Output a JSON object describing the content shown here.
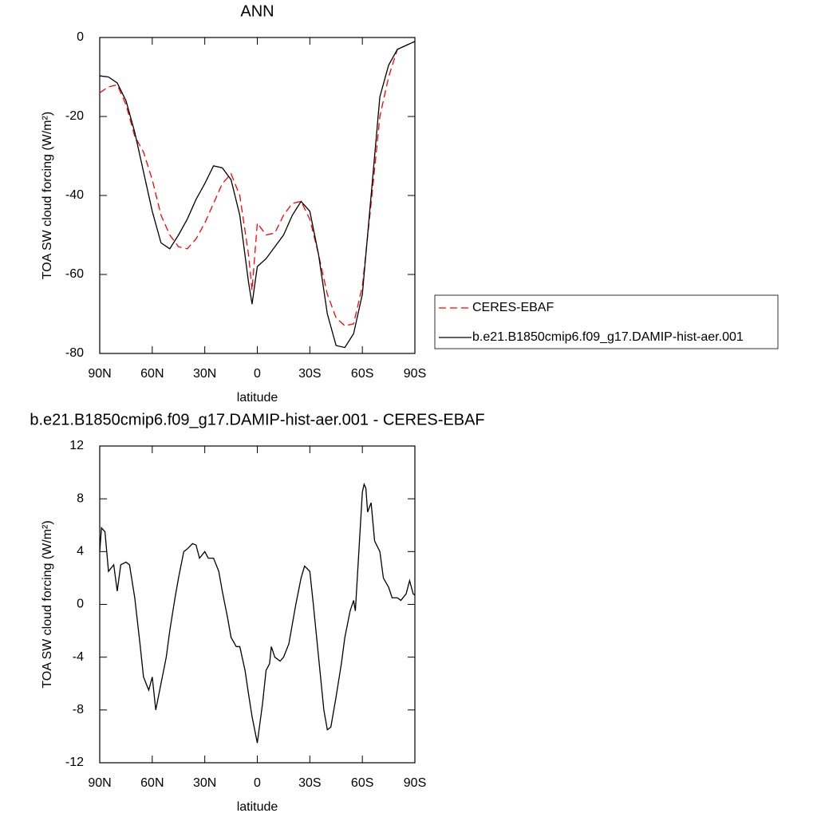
{
  "chart_data": [
    {
      "type": "line",
      "title": "ANN",
      "x_label": "latitude",
      "y_label": "TOA SW cloud forcing (W/m²)",
      "x": [
        90,
        85,
        80,
        75,
        70,
        65,
        60,
        55,
        50,
        45,
        40,
        35,
        30,
        25,
        20,
        15,
        10,
        5,
        3,
        0,
        -5,
        -10,
        -15,
        -20,
        -25,
        -30,
        -35,
        -40,
        -45,
        -50,
        -55,
        -60,
        -65,
        -70,
        -75,
        -80,
        -85,
        -90
      ],
      "series": [
        {
          "name": "CERES-EBAF",
          "color": "#ff0000",
          "line_style": "dashed",
          "values": [
            -14,
            -12.5,
            -12,
            -17,
            -25,
            -29,
            -36,
            -45,
            -50,
            -53,
            -53.5,
            -51,
            -47,
            -42,
            -37,
            -34.5,
            -40,
            -55,
            -64,
            -47,
            -50,
            -49.5,
            -45,
            -42,
            -41.5,
            -46,
            -55,
            -65,
            -71,
            -73,
            -72.5,
            -63,
            -42,
            -20,
            -10,
            -3,
            -2,
            -1
          ]
        },
        {
          "name": "b.e21.B1850cmip6.f09_g17.DAMIP-hist-aer.001",
          "color": "#000000",
          "line_style": "solid",
          "values": [
            -9.7,
            -10,
            -11.5,
            -16,
            -24,
            -34,
            -44,
            -52,
            -53.5,
            -50,
            -46,
            -41,
            -37,
            -32.5,
            -33,
            -36,
            -45,
            -62,
            -67.5,
            -58,
            -56,
            -53,
            -50,
            -45,
            -41.5,
            -44,
            -55,
            -70,
            -78,
            -78.5,
            -75,
            -65,
            -40,
            -15,
            -7,
            -3,
            -2,
            -1
          ]
        }
      ],
      "xlim": [
        90,
        -90
      ],
      "xticks": [
        {
          "value": 90,
          "label": "90N"
        },
        {
          "value": 60,
          "label": "60N"
        },
        {
          "value": 30,
          "label": "30N"
        },
        0,
        {
          "value": -30,
          "label": "30S"
        },
        {
          "value": -60,
          "label": "60S"
        },
        {
          "value": -90,
          "label": "90S"
        }
      ],
      "ylim": [
        -80,
        0
      ],
      "yticks": [
        0,
        -20,
        -40,
        -60,
        -80
      ],
      "legend": "right"
    },
    {
      "type": "line",
      "title": "b.e21.B1850cmip6.f09_g17.DAMIP-hist-aer.001 - CERES-EBAF",
      "x_label": "latitude",
      "y_label": "TOA SW cloud forcing (W/m²)",
      "x": [
        90,
        89,
        87,
        85,
        82,
        80,
        78,
        75,
        73,
        70,
        67,
        65,
        62,
        60,
        58,
        55,
        52,
        50,
        47,
        45,
        42,
        40,
        37,
        35,
        33,
        30,
        28,
        25,
        22,
        20,
        17,
        15,
        12,
        10,
        7,
        5,
        3,
        0,
        -3,
        -5,
        -7,
        -8,
        -10,
        -13,
        -15,
        -18,
        -20,
        -22,
        -25,
        -27,
        -30,
        -32,
        -35,
        -38,
        -40,
        -42,
        -45,
        -48,
        -50,
        -53,
        -55,
        -56,
        -58,
        -60,
        -61,
        -62,
        -63,
        -65,
        -67,
        -70,
        -72,
        -75,
        -77,
        -80,
        -82,
        -85,
        -87,
        -89,
        -90
      ],
      "series": [
        {
          "color": "#000000",
          "line_style": "solid",
          "values": [
            4,
            5.8,
            5.5,
            2.5,
            3,
            1,
            3,
            3.2,
            3,
            0.5,
            -3,
            -5.5,
            -6.5,
            -5.5,
            -8,
            -6,
            -4,
            -2,
            0.5,
            2,
            4,
            4.2,
            4.6,
            4.5,
            3.5,
            4,
            3.5,
            3.5,
            2.5,
            1,
            -1,
            -2.5,
            -3.2,
            -3.2,
            -5,
            -6.8,
            -8.5,
            -10.5,
            -7.5,
            -5,
            -4.5,
            -3.2,
            -4,
            -4.3,
            -4,
            -3,
            -1.5,
            0,
            2,
            2.9,
            2.5,
            0,
            -4,
            -8,
            -9.5,
            -9.3,
            -7,
            -4.5,
            -2.5,
            -0.5,
            0.3,
            -0.5,
            4,
            8.5,
            9.1,
            8.8,
            7,
            7.7,
            4.8,
            4,
            2,
            1.3,
            0.5,
            0.5,
            0.3,
            0.8,
            1.8,
            0.8,
            0.7
          ]
        }
      ],
      "xlim": [
        90,
        -90
      ],
      "xticks": [
        {
          "value": 90,
          "label": "90N"
        },
        {
          "value": 60,
          "label": "60N"
        },
        {
          "value": 30,
          "label": "30N"
        },
        0,
        {
          "value": -30,
          "label": "30S"
        },
        {
          "value": -60,
          "label": "60S"
        },
        {
          "value": -90,
          "label": "90S"
        }
      ],
      "ylim": [
        -12,
        12
      ],
      "yticks": [
        12,
        8,
        4,
        0,
        -4,
        -8,
        -12
      ]
    }
  ]
}
